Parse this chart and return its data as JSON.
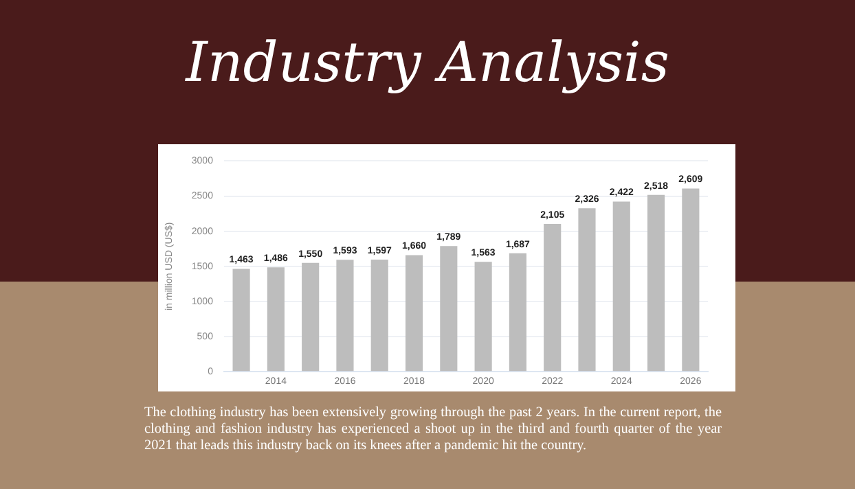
{
  "chart_data": {
    "type": "bar",
    "title": "Industry Analysis",
    "ylabel": "in million USD (US$)",
    "categories": [
      null,
      "2014",
      null,
      "2016",
      null,
      "2018",
      null,
      "2020",
      null,
      "2022",
      null,
      "2024",
      null,
      "2026"
    ],
    "values": [
      1463,
      1486,
      1550,
      1593,
      1597,
      1660,
      1789,
      1563,
      1687,
      2105,
      2326,
      2422,
      2518,
      2609
    ],
    "color": "#bdbdbd",
    "ylim": [
      0,
      3000
    ],
    "yticks": [
      0,
      500,
      1000,
      1500,
      2000,
      2500,
      3000
    ],
    "value_labels": [
      "1,463",
      "1,486",
      "1,550",
      "1,593",
      "1,597",
      "1,660",
      "1,789",
      "1,563",
      "1,687",
      "2,105",
      "2,326",
      "2,422",
      "2,518",
      "2,609"
    ],
    "grid": "y",
    "annotations": [
      "The clothing industry has been extensively growing through the past 2 years. In the current report, the clothing and fashion industry has experienced a shoot up in the third and fourth quarter of the year 2021 that leads this industry back on its knees after a pandemic hit the country."
    ]
  }
}
